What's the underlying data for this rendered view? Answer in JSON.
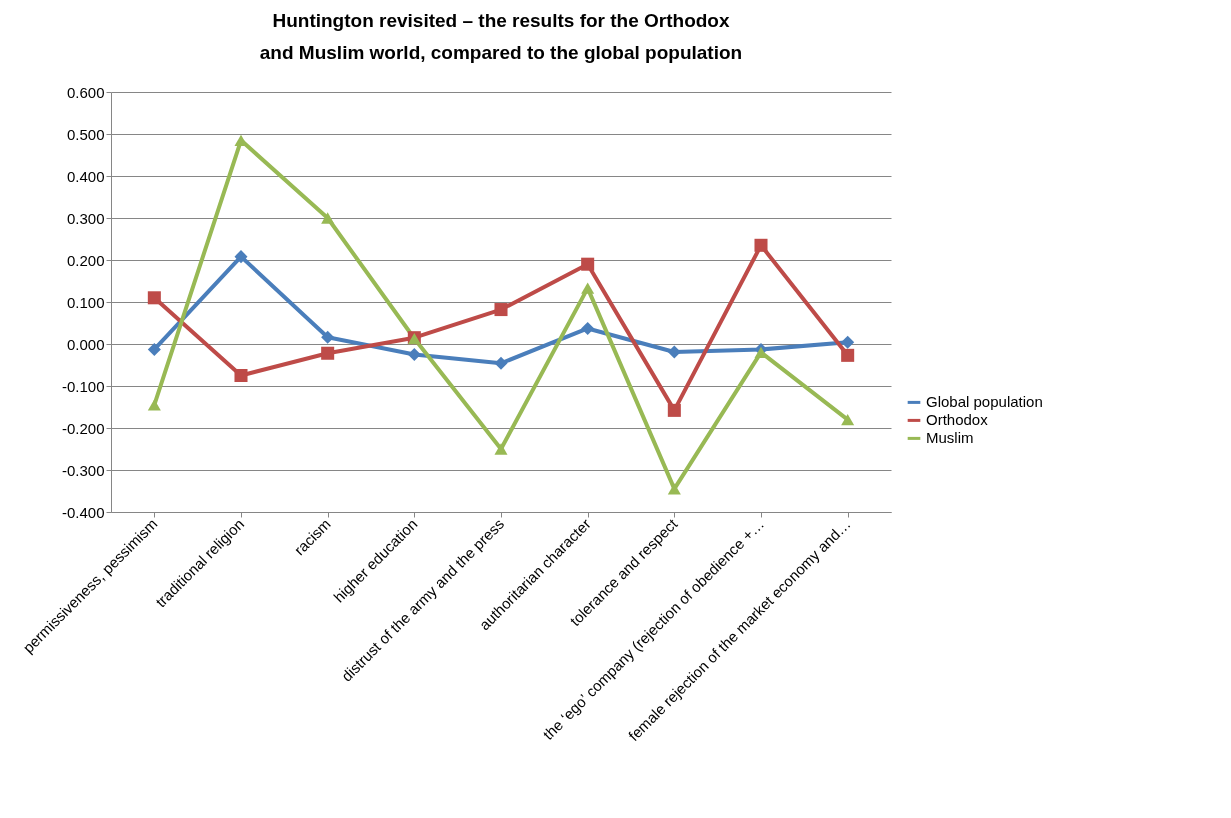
{
  "chart_data": {
    "type": "line",
    "title": "Huntington revisited – the results for the Orthodox and Muslim world, compared to the global population",
    "categories": [
      "permissiveness, pessimism",
      "traditional religion",
      "racism",
      "higher education",
      "distrust of the army and the press",
      "authoritarian character",
      "tolerance and respect",
      "the ‘ego’ company (rejection of obedience +…",
      "female rejection of the market economy and…"
    ],
    "series": [
      {
        "name": "Global population",
        "color": "#4a7ebb",
        "marker": "diamond",
        "values": [
          -0.013,
          0.208,
          0.016,
          -0.025,
          -0.046,
          0.037,
          -0.019,
          -0.013,
          0.004
        ]
      },
      {
        "name": "Orthodox",
        "color": "#be4b48",
        "marker": "square",
        "values": [
          0.11,
          -0.075,
          -0.022,
          0.015,
          0.082,
          0.19,
          -0.158,
          0.235,
          -0.027
        ]
      },
      {
        "name": "Muslim",
        "color": "#98b954",
        "marker": "triangle",
        "values": [
          -0.145,
          0.485,
          0.3,
          0.013,
          -0.25,
          0.133,
          -0.345,
          -0.02,
          -0.18
        ]
      }
    ],
    "ylim": [
      -0.4,
      0.6
    ],
    "yticks": [
      {
        "value": -0.4,
        "label": "-0.400"
      },
      {
        "value": -0.3,
        "label": "-0.300"
      },
      {
        "value": -0.2,
        "label": "-0.200"
      },
      {
        "value": -0.1,
        "label": "-0.100"
      },
      {
        "value": 0,
        "label": "0.000"
      },
      {
        "value": 0.1,
        "label": "0.100"
      },
      {
        "value": 0.2,
        "label": "0.200"
      },
      {
        "value": 0.3,
        "label": "0.300"
      },
      {
        "value": 0.4,
        "label": "0.400"
      },
      {
        "value": 0.5,
        "label": "0.500"
      },
      {
        "value": 0.6,
        "label": "0.600"
      }
    ],
    "grid": "y",
    "legend": "right",
    "line_style": "solid"
  }
}
